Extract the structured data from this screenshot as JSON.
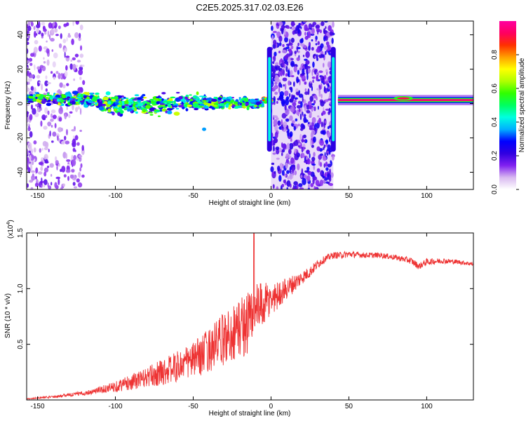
{
  "title": "C2E5.2025.317.02.03.E26",
  "chart_data": [
    {
      "type": "heatmap",
      "name": "spectrogram",
      "xlabel": "Height of straight line (km)",
      "ylabel": "Frequency (Hz)",
      "xlim": [
        -157,
        130
      ],
      "ylim": [
        -50,
        48
      ],
      "xticks": [
        -150,
        -100,
        -50,
        0,
        50,
        100
      ],
      "yticks": [
        -40,
        -20,
        0,
        20,
        40
      ],
      "colorbar": {
        "label": "Normalized spectral amplitude",
        "range": [
          0,
          1
        ],
        "ticks": [
          "0.0",
          "0.2",
          "0.4",
          "0.6",
          "0.8"
        ],
        "tick_values": [
          0,
          0.2,
          0.4,
          0.6,
          0.8
        ],
        "stops": [
          "#ffffff",
          "#d8b8f0",
          "#8020f0",
          "#3000e0",
          "#0000ff",
          "#00b0ff",
          "#00ffe0",
          "#00ff60",
          "#30ff00",
          "#b0ff00",
          "#ffff00",
          "#ffa000",
          "#ff3000",
          "#ff0060",
          "#ff00a0"
        ]
      },
      "broadband_noise_regions_km": [
        [
          -157,
          -120
        ],
        [
          0,
          40
        ]
      ],
      "ridge": {
        "segments": [
          {
            "x_range": [
              -157,
              -5
            ],
            "freq_hz": [
              3,
              0
            ],
            "peak_amplitude": 0.6,
            "description": "scattered multi-color blobs"
          },
          {
            "x_range": [
              -5,
              0
            ],
            "freq_hz": [
              2,
              2
            ],
            "peak_amplitude": 0.9
          },
          {
            "x_range": [
              43,
              130
            ],
            "freq_hz": [
              2,
              2
            ],
            "peak_amplitude": 1.0,
            "description": "continuous red band"
          }
        ]
      },
      "transients_km": [
        -1,
        40
      ],
      "transient_freq_range_hz": [
        -28,
        33
      ]
    },
    {
      "type": "line",
      "name": "snr",
      "xlabel": "Height of straight line (km)",
      "ylabel": "SNR (10 * v/v)",
      "y_multiplier": "(x10",
      "y_multiplier_exp": "4",
      "y_multiplier_close": ")",
      "xlim": [
        -157,
        130
      ],
      "ylim": [
        0,
        1.5
      ],
      "xticks": [
        -150,
        -100,
        -50,
        0,
        50,
        100
      ],
      "yticks": [
        0.5,
        1.0,
        1.5
      ],
      "ytick_labels": [
        "0.5",
        "1.0",
        "1.5"
      ],
      "color": "#ee3333",
      "series": [
        {
          "name": "SNR",
          "x": [
            -157,
            -140,
            -120,
            -110,
            -100,
            -90,
            -80,
            -70,
            -60,
            -50,
            -45,
            -40,
            -35,
            -30,
            -25,
            -20,
            -15,
            -12,
            -10,
            -5,
            0,
            5,
            10,
            15,
            20,
            25,
            30,
            35,
            40,
            45,
            50,
            60,
            70,
            80,
            90,
            95,
            100,
            110,
            120,
            130
          ],
          "y": [
            0.01,
            0.03,
            0.06,
            0.09,
            0.12,
            0.16,
            0.2,
            0.25,
            0.3,
            0.36,
            0.4,
            0.45,
            0.5,
            0.55,
            0.6,
            0.65,
            0.7,
            0.75,
            0.8,
            0.85,
            0.9,
            0.95,
            1.0,
            1.05,
            1.1,
            1.15,
            1.22,
            1.27,
            1.3,
            1.3,
            1.31,
            1.3,
            1.3,
            1.28,
            1.25,
            1.2,
            1.24,
            1.25,
            1.24,
            1.22
          ],
          "noise_amplitude": [
            0.005,
            0.01,
            0.02,
            0.03,
            0.05,
            0.07,
            0.09,
            0.12,
            0.14,
            0.16,
            0.18,
            0.2,
            0.22,
            0.24,
            0.26,
            0.28,
            0.3,
            0.3,
            0.25,
            0.2,
            0.16,
            0.12,
            0.1,
            0.08,
            0.06,
            0.05,
            0.04,
            0.03,
            0.03,
            0.03,
            0.03,
            0.025,
            0.025,
            0.025,
            0.03,
            0.03,
            0.03,
            0.025,
            0.02,
            0.02
          ],
          "spike": {
            "x": -11,
            "y": 1.5
          }
        }
      ]
    }
  ]
}
